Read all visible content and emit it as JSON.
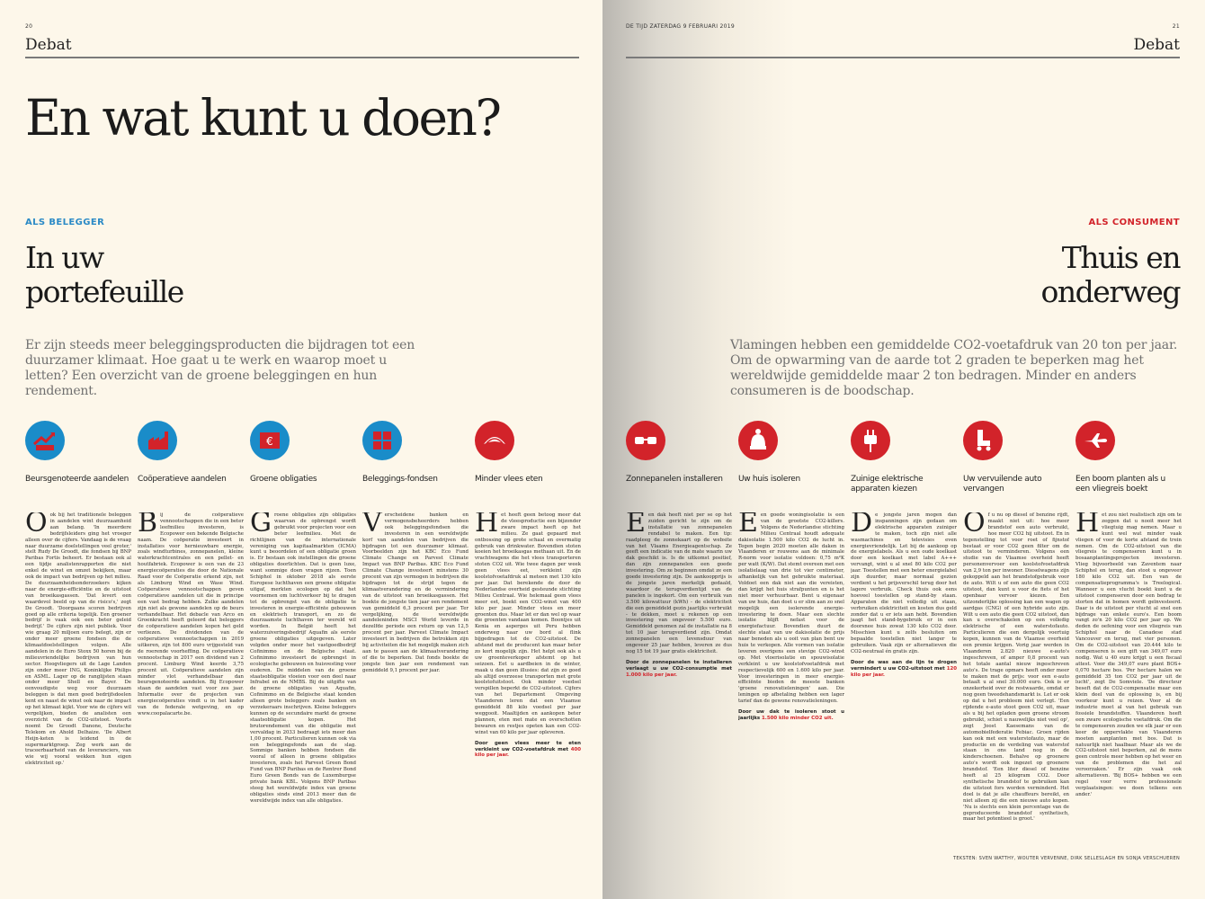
{
  "left": {
    "page_number": "20",
    "section": "Debat",
    "title": "En wat kunt u doen?",
    "kicker": "ALS BELEGGER",
    "subtitle_line1": "In uw",
    "subtitle_line2": "portefeuille",
    "intro": "Er zijn steeds meer beleggingsproducten die bijdragen tot een duurzamer klimaat. Hoe gaat u te werk en waarop moet u letten? Een overzicht van de groene beleggingen en hun rendement.",
    "columns": [
      {
        "icon": "growth-chart-hands-icon",
        "label": "Beursgenoteerde aandelen",
        "drop": "O",
        "text": "ok bij het traditionele beleggen in aandelen wint duurzaamheid aan belang. 'In meerdere bedrijfsleiders ging het vroeger alleen over de cijfers. Vandaag is de vraag naar duurzame doelstellingen veel groter,' stelt Rudy De Groodt, die fondsen bij BNP Paribas Fortis beheert. Er bestaan ook al een tijdje analistenrapporten die niet enkel de winst en omzet bekijken, maar ook de impact van bedrijven op het milieu. De duurzaamheidsonderzoekers kijken naar de energie-efficiëntie en de uitstoot van broeikasgassen. 'Dat levert een waardevol beeld op van de risico's,' zegt De Groodt. 'Doorgaans scoren bedrijven goed op alle criteria tegelijk. Een groener bedrijf is vaak ook een beter geleid bedrijf.' De cijfers zijn niet publiek. Voor wie graag 20 miljoen euro belegt, zijn er onder meer groene fondsen die de klimaatdoelstellingen volgen. Alle aandelen in de Euro Stoxx 50 horen bij de milieuvriendelijke bedrijven van hun sector. Hoogvliegers uit de Lage Landen zijn onder meer ING, Koninklijke Philips en ASML. Lager op de ranglijsten staan onder meer Shell en Bayer. De eenvoudigste weg voor duurzaam beleggen is dat men goed bedrijfsdoelen kent en naast de winst ook naar de impact op het klimaat kijkt. Voor wie de cijfers wil vergelijken, bieden de analisten een overzicht van de CO2-uitstoot. Voorts noemt De Groodt Danone, Deutsche Telekom en Ahold Delhaize. 'De Albert Heijn-keten is leidend in de supermarktgroep. Zeg werk aan de traceerbaarheid van de leveranciers, van wie wij vooral wekken hun eigen elektriciteit op.'"
      },
      {
        "icon": "factory-icon",
        "label": "Coöperatieve aandelen",
        "drop": "B",
        "text": "ij de coöperatieve vennootschappen die in een beter leefmilieu investeren, is Ecopower een bekende Belgische naam. De coöperatie investeert in installaties voor hernieuwbare energie, zoals windturbines, zonnepanelen, kleine waterkrachtcentrales en een pellet- en houtfabriek. Ecopower is een van de 23 energiecoöperaties die door de Nationale Raad voor de Coöperatie erkend zijn, net als Limburg Wind en Wase Wind. Coöperatieve vennootschappen geven coöperatieve aandelen uit die in principe een vast bedrag hebben. Zulke aandelen zijn niet als gewone aandelen op de beurs verhandelbaar. Het debacle van Arco en Groenkracht heeft geleerd dat beleggers de coöperatieve aandelen kopen het geld verliezen. De dividenden van de coöperatieve vennootschappen in 2019 uitkeren, zijn tot 800 euro vrijgesteld van de roerende voorheffing. De coöperatieve vennootschap in 2017 een dividend van 2 procent. Limburg Wind keerde 3,75 procent uit. Coöperatieve aandelen zijn minder vlot verhandelbaar dan beursgenoteerde aandelen. Bij Ecopower staan de aandelen vast voor zes jaar. Informatie over de projecten van energiecoöperaties vindt u in het kader van de federale wetgeving, en op www.coopalacarte.be."
      },
      {
        "icon": "euro-certificate-icon",
        "label": "Groene obligaties",
        "drop": "G",
        "text": "roene obligaties zijn obligaties waarvan de opbrengst wordt gebruikt voor projecten voor een beter leefmilieu. Met de richtlijnen van de internationale vereniging van kapitaalmarkten (ICMA) kunt u beoordelen of een obligatie groen is. Er bestaan ook instellingen die groene obligaties doorlichten. Dat is geen luxe, want sommige doen vragen rijzen. Toen Schiphol in oktober 2018 als eerste Europese luchthaven een groene obligatie uitgaf, merkten ecologen op dat het voornemen om luchtverkeer bij te dragen tot de opbrengst van de obligatie te investeren in energie-efficiënte gebouwen en elektrisch transport, en zo de duurzaamste luchthaven ter wereld wil worden. In België heeft het waterzuiveringsbedrijf Aquafin als eerste groene obligaties uitgegeven. Later volgden onder meer het vastgoedbedrijf Cofinimmo en de Belgische staat. Cofinimmo investeert de opbrengst in ecologische gebouwen en huisvesting voor ouderen. De middelen van de groene staatsobligatie vloeien voor een deel naar Infrabel en de NMBS. Bij de uitgifte van de groene obligaties van Aquafin, Cofinimmo en de Belgische staat konden alleen grote beleggers zoals banken en verzekeraars inschrijven. Kleine beleggers kunnen op de secundaire markt de groene staatsobligatie kopen. Het brutorendement van die obligatie met vervaldag in 2033 bedraagt iets meer dan 1,00 procent. Particulieren kunnen ook via een beleggingsfonds aan de slag. Sommige banken hebben fondsen die vooral of alleen in groene obligaties investeren, zoals het Parvest Green Bond Fund van BNP Paribas en de Rentrer Bond Euro Green Bonds van de Luxemburgse private bank KBL. Volgens BNP Paribas steeg het wereldwijde index van groene obligaties sinds eind 2013 meer dan de wereldwijde index van alle obligaties."
      },
      {
        "icon": "puzzle-globe-icon",
        "label": "Beleggings-fondsen",
        "drop": "V",
        "text": "erscheidene banken en vermogensbeheerders hebben ook beleggingsfondsen die investeren in een wereldwijde korf van aandelen van bedrijven die bijdragen tot een duurzamer klimaat. Voorbeelden zijn het KBC Eco Fund Climate Change en Parvest Climate Impact van BNP Paribas. KBC Eco Fund Climate Change investeert minstens 30 procent van zijn vermogen in bedrijven die bijdragen tot de strijd tegen de klimaatverandering en de vermindering van de uitstoot van broeikasgassen. Het boekte de jongste tien jaar een rendement van gemiddeld 6,3 procent per jaar. Ter vergelijking, de wereldwijde aandelenindex MSCI World leverde in dezelfde periode een return op van 12,5 procent per jaar. Parvest Climate Impact investeert in bedrijven die betrokken zijn bij activiteiten die het mogelijk maken zich aan te passen aan de klimaatverandering of die te beperken. Dat fonds boekte de jongste tien jaar een rendement van gemiddeld 9,1 procent per jaar."
      },
      {
        "icon": "steak-icon",
        "label": "Minder vlees eten",
        "drop": "H",
        "text": "et heeft geen betoog meer dat de vleesproductie een bijzonder zware impact heeft op het milieu. Ze gaat gepaard met ontbossing op grote schaal en overmatig gebruik van drinkwater. Bovendien stoten koeien het broeikasgas methaan uit. En de vrachtwagens die het vlees transporteren stoten CO2 uit. Wie twee dagen per week geen vlees eet, verkleint zijn koolstofvoetafdruk al meteen met 130 kilo per jaar. Dat berekende de door de Nederlandse overheid gesteunde stichting Milieu Centraal. Wie helemaal geen vlees meer eet, boekt een CO2-winst van 400 kilo per jaar. Minder vlees en meer groenten dus. Maar let er dan wel op waar die groenten vandaan komen. Boontjes uit Kenia en asperges uit Peru hebben onderweg naar uw bord al flink bijgedragen tot de CO2-uitstoot. De afstand met de producent kan maar beter zo kort mogelijk zijn. Het helpt ook als u uw groenteverkoper afstemt op het seizoen. Eet u aardbeien in de winter, maak u dan geen illusies: dat zijn zo goed als altijd overzeese transporten met grote koolstofuitstoot. Ook minder voedsel verspillen beperkt de CO2-uitstoot. Cijfers van het Departement Omgeving Vlaanderen leren dat een Vlaamse gemiddeld 88 kilo voedsel per jaar weggooit. Maaltijden en aankopen beter plannen, eten met mate en overschotten bewaren en restjes opeten kan een CO2-winst van 60 kilo per jaar opleveren.",
        "foot_text": "Door geen vlees meer te eten verkleint uw CO2-voetafdruk met",
        "foot_value": "400 kilo per jaar."
      }
    ]
  },
  "right": {
    "meta": "DE TIJD ZATERDAG 9 FEBRUARI 2019",
    "page_number": "21",
    "section": "Debat",
    "kicker": "ALS CONSUMENT",
    "subtitle_line1": "Thuis en",
    "subtitle_line2": "onderweg",
    "intro": "Vlamingen hebben een gemiddelde CO2-voetafdruk van 20 ton per jaar. Om de opwarming van de aarde tot 2 graden te beperken mag het wereldwijde gemiddelde maar 2 ton bedragen. Minder en anders consumeren is de boodschap.",
    "columns": [
      {
        "icon": "sunglasses-icon",
        "label": "Zonnepanelen installeren",
        "drop": "E",
        "text": "en dak heeft niet per se op het zuiden gericht te zijn om de installatie van zonnepanelen rendabel te maken. Een tip: raadpleeg de zonnekaart op de website van het Vlaams Energieagentschap. Ze geeft een indicatie van de mate waarin uw dak geschikt is. Is de uitkomst positief, dan zijn zonnepanelen een goede investering. Om ze beginnen omdat ze een goede investering zijn. De aankoopprijs is de jongste jaren merkelijk gedaald, waardoor de terugverdientijd van de panelen is ingekort. Om een verbruik van 3.500 kilowattuur (kWh) - de elektriciteit die een gemiddeld gezin jaarlijks verbruikt - te dekken, moet u rekenen op een investering van ongeveer 5.500 euro. Gemiddeld genomen zal de installatie na 8 tot 10 jaar terugverdiend zijn. Omdat zonnepanelen een levensduur van ongeveer 25 jaar hebben, leveren ze dus nog 15 tot 19 jaar gratis elektriciteit.",
        "foot_text": "Door de zonnepanelen te installeren verlaagt u uw CO2-consumptie met",
        "foot_value": "1.000 kilo per jaar."
      },
      {
        "icon": "knit-hat-icon",
        "label": "Uw huis isoleren",
        "drop": "E",
        "text": "en goede woningisolatie is een van de grootste CO2-killers. Volgens de Nederlandse stichting Milieu Centraal houdt adequate dakisolatie 1.500 kilo CO2 de lucht in. Tegen begin 2020 moeten alle daken in Vlaanderen er rouwens aan de minimale R-norm voor isolatie voldoen: 0,75 m²K per watt (K/W). Dat stemt overeen met een isolatielaag van drie tot vier centimeter, afhankelijk van het gebruikte materiaal. Voldoet een dak niet aan die vereisten, dan krijgt het huis strafpunten en is het niet meer verhuurbaar. Bent u eigenaar van uw huis, dan doet u er slim aan zo snel mogelijk een isolerende energie-investering te doen. Maar een slechte isolatie blijft nefast voor de energiefactuur. Bovendien duurt de slechte staat van uw dakisolatie de prijs naar beneden als u ooit van plan bent uw huis te verkopen. Alle vormen van isolatie leveren overigens een stevige CO2-winst op. Met vloerisolatie en spouwisolatie verkleint u uw koolstofvoetafdruk met respectievelijk 600 en 1.600 kilo per jaar. Voor investeringen in meer energie-efficiënte bieden de meeste banken 'groene renovatieleningen' aan. Die leningen op afbetaling hebben een lager tarief dan de gewone renovatieleningen.",
        "foot_text": "Door uw dak te isoleren stoot u jaarlijks",
        "foot_value": "1.500 kilo minder CO2 uit."
      },
      {
        "icon": "power-plug-icon",
        "label": "Zuinige elektrische apparaten kiezen",
        "drop": "D",
        "text": "e jongste jaren mogen dan inspanningen zijn gedaan om elektrische apparaten zuiniger te maken, toch zijn niet alle wasmachines en televisies even energievriendelijk. Let bij de aankoop op de energielabels. Als u een oude koelkast door een koelkast met label A+++ vervangt, wint u al snel 80 kilo CO2 per jaar. Toestellen met een beter energielabel zijn duurder, maar normaal gezien verdient u het prijsverschil terug door het lagere verbruik. Check thuis ook eens hoeveel toestellen op stand-by staan. Apparaten die niet volledig uit staan, verbruiken elektriciteit en kosten dus geld zonder dat u er iets aan hebt. Bovendien jaagt het stand-bygebruik er in een doorsnee huis zowat 130 kilo CO2 door. Misschien kunt u zelfs besluiten om bepaalde toestellen niet langer te gebruiken. Vaak zijn er alternatieven die CO2-neutraal én gratis zijn.",
        "foot_text": "Door de was aan de lijn te drogen vermindert u uw CO2-uitstoot met",
        "foot_value": "120 kilo per jaar."
      },
      {
        "icon": "roller-skate-icon",
        "label": "Uw vervuilende auto vervangen",
        "drop": "O",
        "text": "f u nu op diesel of benzine rijdt, maakt niet uit: hoe meer brandstof een auto verbruikt, hoe meer CO2 hij uitstoot. En in tegenstelling tot voor roet of fijnstof bestaat er voor CO2 geen filter om de uitstoot te verminderen. Volgens een studie van de Vlaamse overheid heeft personenvervoer een koolstofvoetafdruk van 2,9 ton per inwoner. Dieselwagens zijn gekoppeld aan het brandstofgebruik voor de auto. Wilt u of een auto die geen CO2 uitstoot, dan kunt u voor de fiets of het openbaar vervoer kiezen. Een uitzonderlijke oplossing kan een wagen op aardgas (CNG) of een hybride auto zijn. Wilt u een auto die geen CO2 uitstoot, dan kan u overschakelen op een volledig elektrische of een waterstofauto. Particulieren die een dergelijk voertuig kopen, kunnen van de Vlaamse overheid een premie krijgen. Vorig jaar werden in Vlaanderen 2.820 nieuwe e-auto's ingeschreven, of amper 0,8 procent van het totale aantal nieuw ingeschreven auto's. De trage opmars heeft onder meer te maken met de prijs: voor een e-auto betaalt u al snel 30.000 euro. Ook is er onzekerheid over de restwaarde, omdat er nog geen tweedehandsmarkt is. Let er ook op dat u het probleem niet verlegt. 'Een rijdende e-auto stoot geen CO2 uit, maar als u bij het opladen geen groene stroom gebruikt, schiet u nauwelijks niet veel op', zegt Joost Kaesemans van de automobielfederatie Febiac. Groen rijden kan ook met een waterstofauto, maar de productie en de verdeling van waterstof staan in ons land nog in de kinderschoenen. Behalve op groenere auto's wordt ook ingezet op groenere brandstof. 'Een liter diesel of benzine heeft al 25 kilogram CO2. Door synthetische brandstof te gebruiken kan die uitstoot fors worden verminderd. Het doel is dat je alle chauffeurs bereikt, en niet alleen zij die een nieuwe auto kopen. 'Nu is slechts een klein percentage van de geproduceerde brandstof synthetisch, maar het potentieel is groot.'"
      },
      {
        "icon": "airplane-icon",
        "label": "Een boom planten als u een vliegreis boekt",
        "drop": "H",
        "text": "et zou niet realistisch zijn om te zeggen dat u nooit meer het vliegtuig mag nemen. Maar u kunt wel wat minder vaak vliegen of voor de korte afstand de trein nemen. Om de CO2-uitstoot van die vliegreis te compenseren kunt u in bosaanplantingsprojecten investeren. Vlieg bijvoorbeeld van Zaventem naar Schiphol en terug, dan stoot u ongeveer 180 kilo CO2 uit. Een van de compensatieprogramma's is Treelogical. Wanneer u een vlucht boekt kunt u de uitstoot compenseren door een bedrag te storten dat in bomen wordt geïnvesteerd. Daar is de uitstoot per vlucht al snel een bijdrage van enkele euro's. Een boom vangt zo'n 20 kilo CO2 per jaar op. We deden de oefening voor een vliegreis van Schiphol naar de Canadese stad Vancouver en terug, met vier personen. Om de CO2-uitstoot van 20.444 kilo te compenseren is een gift van 349,07 euro nodig. Wat u 40 euro krijgt u een fiscaal attest. Voor die 349,07 euro plant BOS+ 0,070 hectare bos. 'Per hectare halen we gemiddeld 35 ton CO2 per jaar uit de lucht', zegt De Somviele. 'De directeur beseft dat de CO2-compensatie maar een klein deel van de oplossing is, en bij voorkeur kunt u reizen. Voor al de industrie moet al van het gebruik van fossiele brandstoffen. Vlaanderen heeft een zware ecologische voetafdruk. Om die te compenseren zouden we elk jaar er een keer de oppervlakte van Vlaanderen moeten aanplanten met bos. Dat is natuurlijk niet haalbaar. Maar als we de CO2-uitstoot niet beperken, zal de mens geen controle meer hebben op het weer en van de problemen die het zal veroorzaken.' Er zijn vaak ook alternatieven. 'Bij BOS+ hebben we een regel voor verre professionele verplaatsingen: we doen telkens een ander.'"
      }
    ],
    "credits": "TEKSTEN: SVEN WATTHY, WOUTER VERVENNE, DIRK SELLESLAGH EN SONJA VERSCHUEREN"
  },
  "colors": {
    "blue": "#1a8cc9",
    "red": "#d2232a",
    "kicker_blue": "#2b8ac6",
    "kicker_red": "#d2232a"
  }
}
